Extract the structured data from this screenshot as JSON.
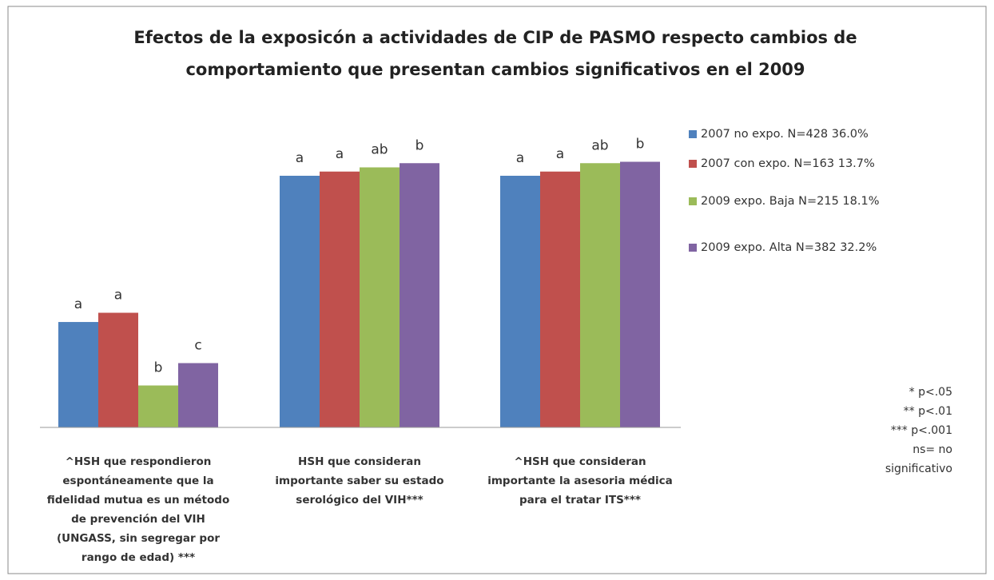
{
  "chart_data": {
    "type": "bar",
    "title": [
      "Efectos de la exposicón a actividades de CIP de PASMO respecto cambios de",
      "comportamiento que presentan cambios significativos en el 2009"
    ],
    "categories": [
      [
        "^HSH que respondieron",
        "espontáneamente que la",
        "fidelidad mutua es un método",
        "de prevención del VIH",
        "(UNGASS, sin segregar por",
        "rango de edad) ***"
      ],
      [
        "HSH que consideran",
        "importante saber su estado",
        "serológico del VIH***"
      ],
      [
        "^HSH que consideran",
        "importante la asesoria médica",
        "para el tratar ITS***"
      ]
    ],
    "series": [
      {
        "name": "2007 no expo. N=428 36.0%",
        "color": "#4f81bd",
        "values": [
          37.7,
          90,
          90
        ],
        "letters": [
          "a",
          "a",
          "a"
        ]
      },
      {
        "name": "2007 con expo. N=163 13.7%",
        "color": "#c0504d",
        "values": [
          41,
          91.5,
          91.5
        ],
        "letters": [
          "a",
          "a",
          "a"
        ]
      },
      {
        "name": "2009 expo. Baja N=215 18.1%",
        "color": "#9bbb59",
        "values": [
          15,
          93,
          94.5
        ],
        "letters": [
          "b",
          "ab",
          "ab"
        ]
      },
      {
        "name": "2009 expo. Alta N=382 32.2%",
        "color": "#8064a2",
        "values": [
          23,
          94.5,
          95
        ],
        "letters": [
          "c",
          "b",
          "b"
        ]
      }
    ],
    "notes": [
      "* p<.05",
      "** p<.01",
      "*** p<.001",
      "ns= no",
      "significativo"
    ]
  }
}
